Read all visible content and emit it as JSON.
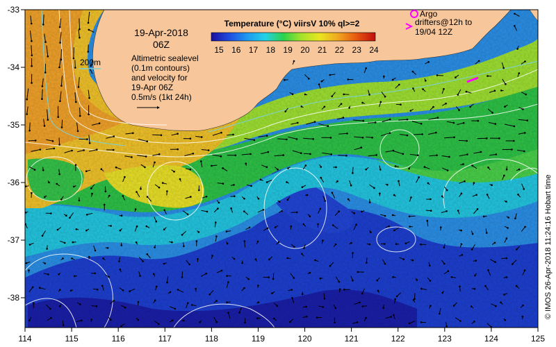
{
  "map": {
    "date_line1": "19-Apr-2018",
    "date_line2": "06Z",
    "colorbar_title": "Temperature (°C) viirsV 10% ql>=2",
    "colorbar_ticks": [
      "15",
      "16",
      "17",
      "18",
      "19",
      "20",
      "21",
      "22",
      "23",
      "24"
    ],
    "colorbar_colors": [
      "#1a0f9e",
      "#1f4de0",
      "#1f9af0",
      "#23d2e6",
      "#2bd24a",
      "#a6e22a",
      "#e8e620",
      "#f0a820",
      "#e85a10",
      "#c00e0e"
    ],
    "depth_label": "200m",
    "altimetry_lines": [
      "Altimetric sealevel",
      "(0.1m contours)",
      "and velocity for",
      "19-Apr 06Z",
      "0.5m/s (1kt 24h)"
    ],
    "argo_label": "Argo",
    "drifters_lines": [
      "drifters@12h to",
      "19/04 12Z"
    ],
    "x_ticks": [
      "114",
      "115",
      "116",
      "117",
      "118",
      "119",
      "120",
      "121",
      "122",
      "123",
      "124",
      "125"
    ],
    "y_ticks": [
      "-33",
      "-34",
      "-35",
      "-36",
      "-37",
      "-38"
    ],
    "credit": "© IMOS 26-Apr-2018 11:24:16 Hobart time",
    "colors": {
      "land": "#f7c79b",
      "contour": "#ffffff",
      "isobath": "#7fd0d0",
      "argo": "#ff00ff"
    }
  }
}
